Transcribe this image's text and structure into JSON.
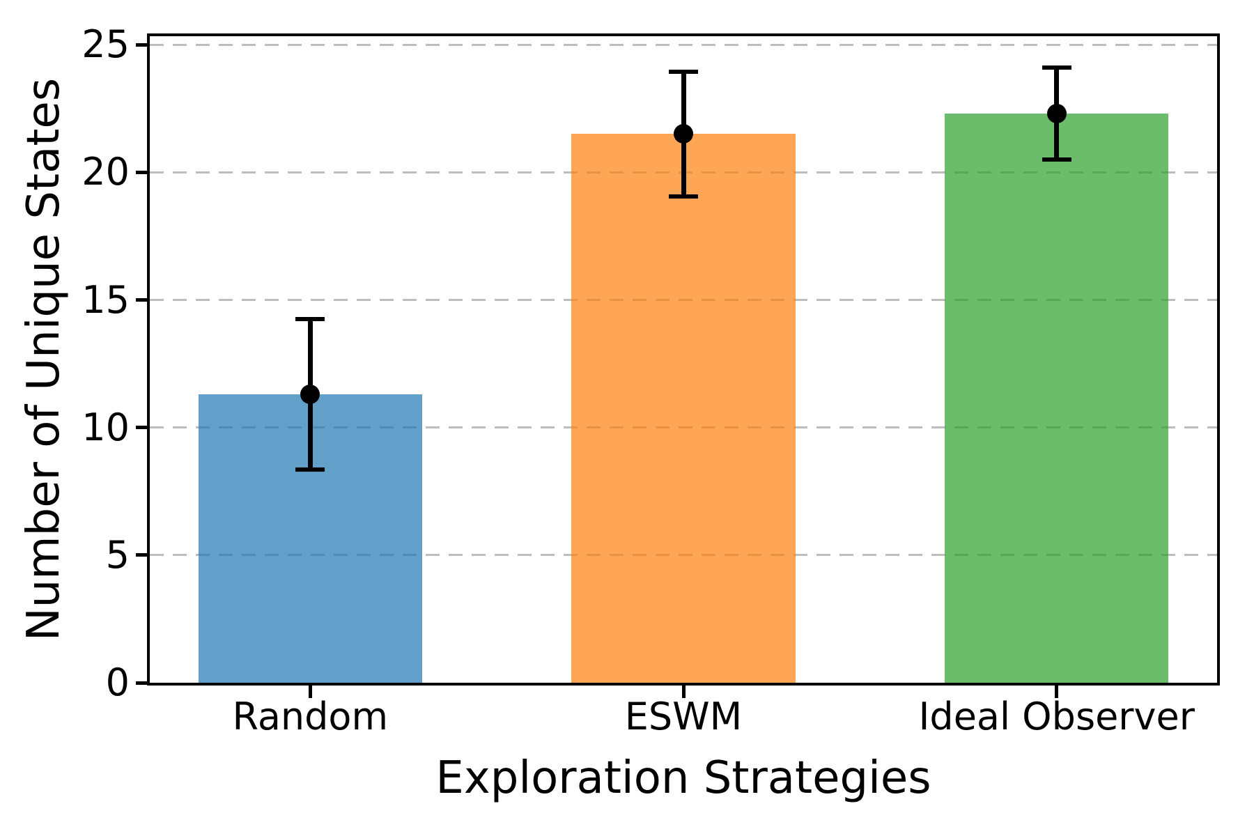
{
  "chart_data": {
    "type": "bar",
    "xlabel": "Exploration Strategies",
    "ylabel": "Number of Unique States",
    "categories": [
      "Random",
      "ESWM",
      "Ideal Observer"
    ],
    "values": [
      11.3,
      21.5,
      22.3
    ],
    "errors": [
      2.95,
      2.45,
      1.8
    ],
    "x_positions": [
      0,
      1,
      2
    ],
    "bar_width": 0.6,
    "bar_colors": [
      "#1f77b4",
      "#ff7f0e",
      "#2ca02c"
    ],
    "bar_alpha": 0.7,
    "error_color": "#000000",
    "marker": "filled-circle",
    "yticks": [
      0,
      5,
      10,
      15,
      20,
      25
    ],
    "ylim": [
      0,
      25.33
    ],
    "xlim": [
      -0.43,
      2.43
    ],
    "grid": "horizontal-dashed",
    "grid_color": "#bdbdbd",
    "axis_color": "#000000",
    "legend": "none"
  }
}
